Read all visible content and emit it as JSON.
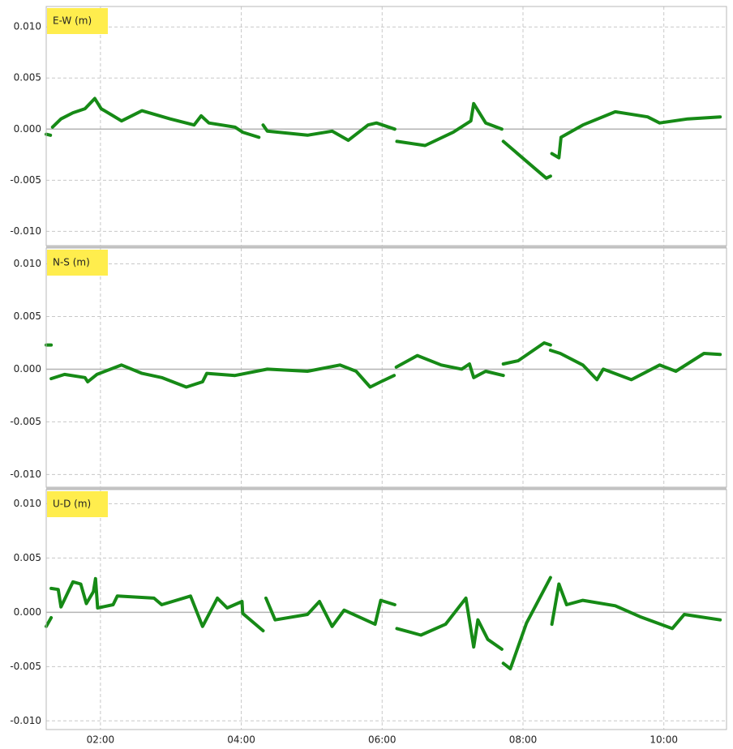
{
  "chart_data": [
    {
      "type": "line",
      "title": "E-W (m)",
      "color": "#168a16",
      "x": [
        1.23,
        1.29,
        null,
        1.32,
        1.44,
        1.61,
        1.78,
        1.92,
        2.01,
        2.18,
        2.3,
        2.59,
        2.99,
        3.33,
        3.43,
        3.54,
        3.91,
        4.02,
        4.25,
        null,
        4.31,
        4.37,
        4.94,
        5.29,
        5.52,
        5.8,
        5.92,
        6.18,
        null,
        6.21,
        6.61,
        7.01,
        7.26,
        7.3,
        7.47,
        7.7,
        null,
        7.72,
        8.16,
        8.33,
        8.39,
        null,
        8.41,
        8.51,
        8.54,
        8.85,
        9.31,
        9.77,
        9.94,
        10.34,
        10.8
      ],
      "values": [
        -0.0005,
        -0.0006,
        null,
        0.0002,
        0.001,
        0.0016,
        0.002,
        0.003,
        0.002,
        0.0013,
        0.0008,
        0.0018,
        0.001,
        0.0004,
        0.0013,
        0.0006,
        0.0002,
        -0.0003,
        -0.0008,
        null,
        0.0004,
        -0.0002,
        -0.0006,
        -0.0002,
        -0.0011,
        0.0004,
        0.0006,
        0.0,
        null,
        -0.0012,
        -0.0016,
        -0.0003,
        0.0008,
        0.0025,
        0.0006,
        0.0,
        null,
        -0.0012,
        -0.0038,
        -0.0048,
        -0.0046,
        null,
        -0.0024,
        -0.0028,
        -0.0008,
        0.0004,
        0.0017,
        0.0012,
        0.0006,
        0.001,
        0.0012
      ],
      "ylim": [
        -0.0114,
        0.012
      ],
      "yticks": [
        {
          "value": 0.01,
          "label": "0.010"
        },
        {
          "value": 0.005,
          "label": "0.005"
        },
        {
          "value": 0,
          "label": "0.000"
        },
        {
          "value": -0.005,
          "label": "-0.005"
        },
        {
          "value": -0.01,
          "label": "-0.010"
        }
      ],
      "grid": true
    },
    {
      "type": "line",
      "title": "N-S (m)",
      "color": "#168a16",
      "x": [
        1.23,
        1.3,
        null,
        1.3,
        1.49,
        1.78,
        1.82,
        1.95,
        2.3,
        2.59,
        2.87,
        3.22,
        3.45,
        3.51,
        3.91,
        4.37,
        4.94,
        5.4,
        5.63,
        5.83,
        5.98,
        6.17,
        null,
        6.2,
        6.5,
        6.84,
        7.13,
        7.24,
        7.3,
        7.47,
        7.72,
        null,
        7.72,
        7.93,
        8.3,
        8.39,
        null,
        8.39,
        8.53,
        8.85,
        9.05,
        9.14,
        9.54,
        9.94,
        10.17,
        10.57,
        10.8
      ],
      "values": [
        0.0023,
        0.0023,
        null,
        -0.0009,
        -0.0005,
        -0.0008,
        -0.0012,
        -0.0005,
        0.0004,
        -0.0004,
        -0.0008,
        -0.0017,
        -0.0012,
        -0.0004,
        -0.0006,
        0.0,
        -0.0002,
        0.0004,
        -0.0002,
        -0.0017,
        -0.0012,
        -0.0006,
        null,
        0.0002,
        0.0013,
        0.0004,
        0.0,
        0.0005,
        -0.0008,
        -0.0002,
        -0.0006,
        null,
        0.0005,
        0.0008,
        0.0025,
        0.0023,
        null,
        0.0018,
        0.0015,
        0.0004,
        -0.001,
        0.0,
        -0.001,
        0.0004,
        -0.0002,
        0.0015,
        0.0014
      ],
      "ylim": [
        -0.0112,
        0.0115
      ],
      "yticks": [
        {
          "value": 0.01,
          "label": "0.010"
        },
        {
          "value": 0.005,
          "label": "0.005"
        },
        {
          "value": 0,
          "label": "0.000"
        },
        {
          "value": -0.005,
          "label": "-0.005"
        },
        {
          "value": -0.01,
          "label": "-0.010"
        }
      ],
      "grid": true
    },
    {
      "type": "line",
      "title": "U-D (m)",
      "color": "#168a16",
      "x": [
        1.23,
        1.3,
        null,
        1.3,
        1.4,
        1.44,
        1.61,
        1.72,
        1.8,
        1.9,
        1.93,
        1.96,
        2.18,
        2.24,
        2.76,
        2.87,
        3.28,
        3.45,
        3.66,
        3.8,
        4.01,
        4.02,
        4.31,
        null,
        4.35,
        4.48,
        4.94,
        5.11,
        5.29,
        5.46,
        5.9,
        5.98,
        6.18,
        null,
        6.21,
        6.55,
        6.9,
        7.19,
        7.3,
        7.36,
        7.5,
        7.7,
        null,
        7.72,
        7.82,
        8.05,
        8.39,
        null,
        8.41,
        8.51,
        8.62,
        8.85,
        9.31,
        9.66,
        10.12,
        10.29,
        10.8
      ],
      "values": [
        -0.0013,
        -0.0005,
        null,
        0.0022,
        0.0021,
        0.0005,
        0.0028,
        0.0026,
        0.0008,
        0.0019,
        0.0031,
        0.0004,
        0.0007,
        0.0015,
        0.0013,
        0.0007,
        0.0015,
        -0.0013,
        0.0013,
        0.0004,
        0.001,
        -0.0001,
        -0.0017,
        null,
        0.0013,
        -0.0007,
        -0.0002,
        0.001,
        -0.0013,
        0.0002,
        -0.0011,
        0.0011,
        0.0007,
        null,
        -0.0015,
        -0.0021,
        -0.0011,
        0.0013,
        -0.0032,
        -0.0007,
        -0.0025,
        -0.0034,
        null,
        -0.0047,
        -0.0052,
        -0.001,
        0.0032,
        null,
        -0.0011,
        0.0026,
        0.0007,
        0.0011,
        0.0006,
        -0.0004,
        -0.0015,
        -0.0002,
        -0.0007
      ],
      "ylim": [
        -0.0108,
        0.0113
      ],
      "yticks": [
        {
          "value": 0.01,
          "label": "0.010"
        },
        {
          "value": 0.005,
          "label": "0.005"
        },
        {
          "value": 0,
          "label": "0.000"
        },
        {
          "value": -0.005,
          "label": "-0.005"
        },
        {
          "value": -0.01,
          "label": "-0.010"
        }
      ],
      "xlim": [
        1.23,
        10.89
      ],
      "xticks": [
        {
          "value": 2,
          "label": "02:00"
        },
        {
          "value": 4,
          "label": "04:00"
        },
        {
          "value": 6,
          "label": "06:00"
        },
        {
          "value": 8,
          "label": "08:00"
        },
        {
          "value": 10,
          "label": "10:00"
        }
      ],
      "grid": true
    }
  ]
}
